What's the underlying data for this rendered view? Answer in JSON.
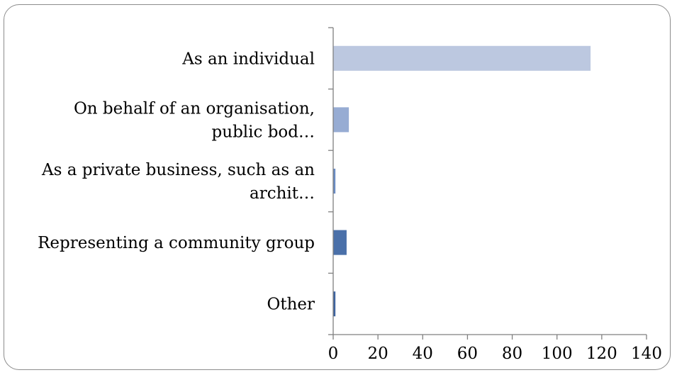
{
  "chart_data": {
    "type": "bar",
    "orientation": "horizontal",
    "categories": [
      [
        "As an individual"
      ],
      [
        "On behalf of an organisation,",
        "public bod…"
      ],
      [
        "As a private business, such as an",
        "archit…"
      ],
      [
        "Representing a community group"
      ],
      [
        "Other"
      ]
    ],
    "values": [
      115,
      7,
      1,
      6,
      1
    ],
    "bar_colors": [
      "#bcc8e0",
      "#97acd3",
      "#6a8cc4",
      "#4a70a9",
      "#3f65a0"
    ],
    "xlim": [
      0,
      140
    ],
    "xticks": [
      0,
      20,
      40,
      60,
      80,
      100,
      120,
      140
    ],
    "title": "",
    "xlabel": "",
    "ylabel": "",
    "grid": false,
    "legend": "none"
  }
}
